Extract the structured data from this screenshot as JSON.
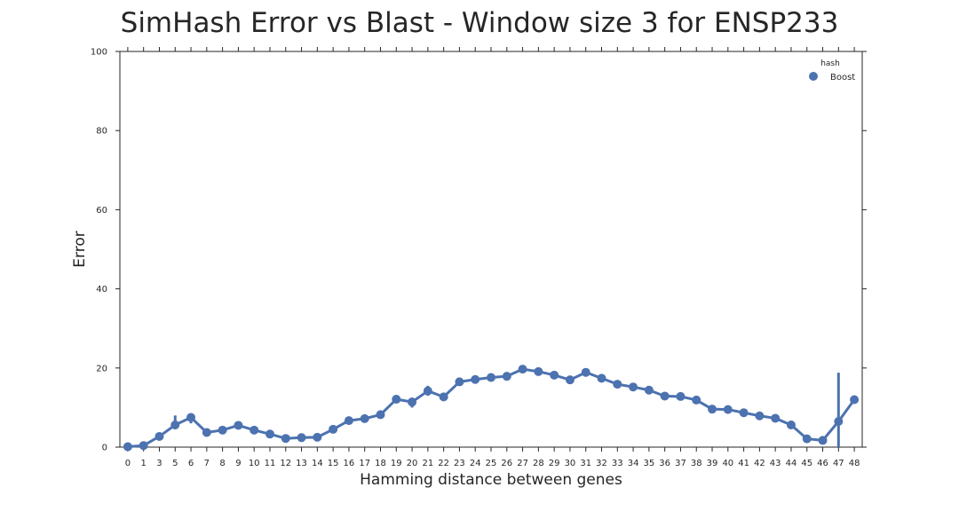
{
  "chart_data": {
    "type": "line",
    "title": "SimHash Error vs Blast - Window size 3 for ENSP233",
    "xlabel": "Hamming distance between genes",
    "ylabel": "Error",
    "ylim": [
      0,
      100
    ],
    "yticks": [
      "0",
      "20",
      "40",
      "60",
      "80",
      "100"
    ],
    "grid": false,
    "legend_placement": "top-right",
    "legend_title": "hash",
    "categories": [
      "0",
      "1",
      "3",
      "5",
      "6",
      "7",
      "8",
      "9",
      "10",
      "11",
      "12",
      "13",
      "14",
      "15",
      "16",
      "17",
      "18",
      "19",
      "20",
      "21",
      "22",
      "23",
      "24",
      "25",
      "26",
      "27",
      "28",
      "29",
      "30",
      "31",
      "32",
      "33",
      "34",
      "35",
      "36",
      "37",
      "38",
      "39",
      "40",
      "41",
      "42",
      "43",
      "44",
      "45",
      "46",
      "47",
      "48"
    ],
    "series": [
      {
        "name": "Boost",
        "color": "#4c72b0",
        "values": [
          0.1,
          0.4,
          2.7,
          5.6,
          7.5,
          3.7,
          4.3,
          5.5,
          4.3,
          3.3,
          2.2,
          2.4,
          2.5,
          4.5,
          6.7,
          7.2,
          8.2,
          12.1,
          11.4,
          14.2,
          12.7,
          16.5,
          17.1,
          17.6,
          17.9,
          19.7,
          19.1,
          18.2,
          17.0,
          18.9,
          17.4,
          15.9,
          15.2,
          14.4,
          12.9,
          12.8,
          11.9,
          9.6,
          9.5,
          8.7,
          7.9,
          7.3,
          5.6,
          2.1,
          1.7,
          6.5,
          12.0
        ],
        "error_bars": [
          {
            "category": "5",
            "low": 4.5,
            "high": 8.0
          },
          {
            "category": "6",
            "low": 6.0,
            "high": 8.5
          },
          {
            "category": "20",
            "low": 10.0,
            "high": 12.5
          },
          {
            "category": "21",
            "low": 13.0,
            "high": 15.5
          },
          {
            "category": "47",
            "low": 0.0,
            "high": 18.8
          }
        ]
      }
    ]
  }
}
